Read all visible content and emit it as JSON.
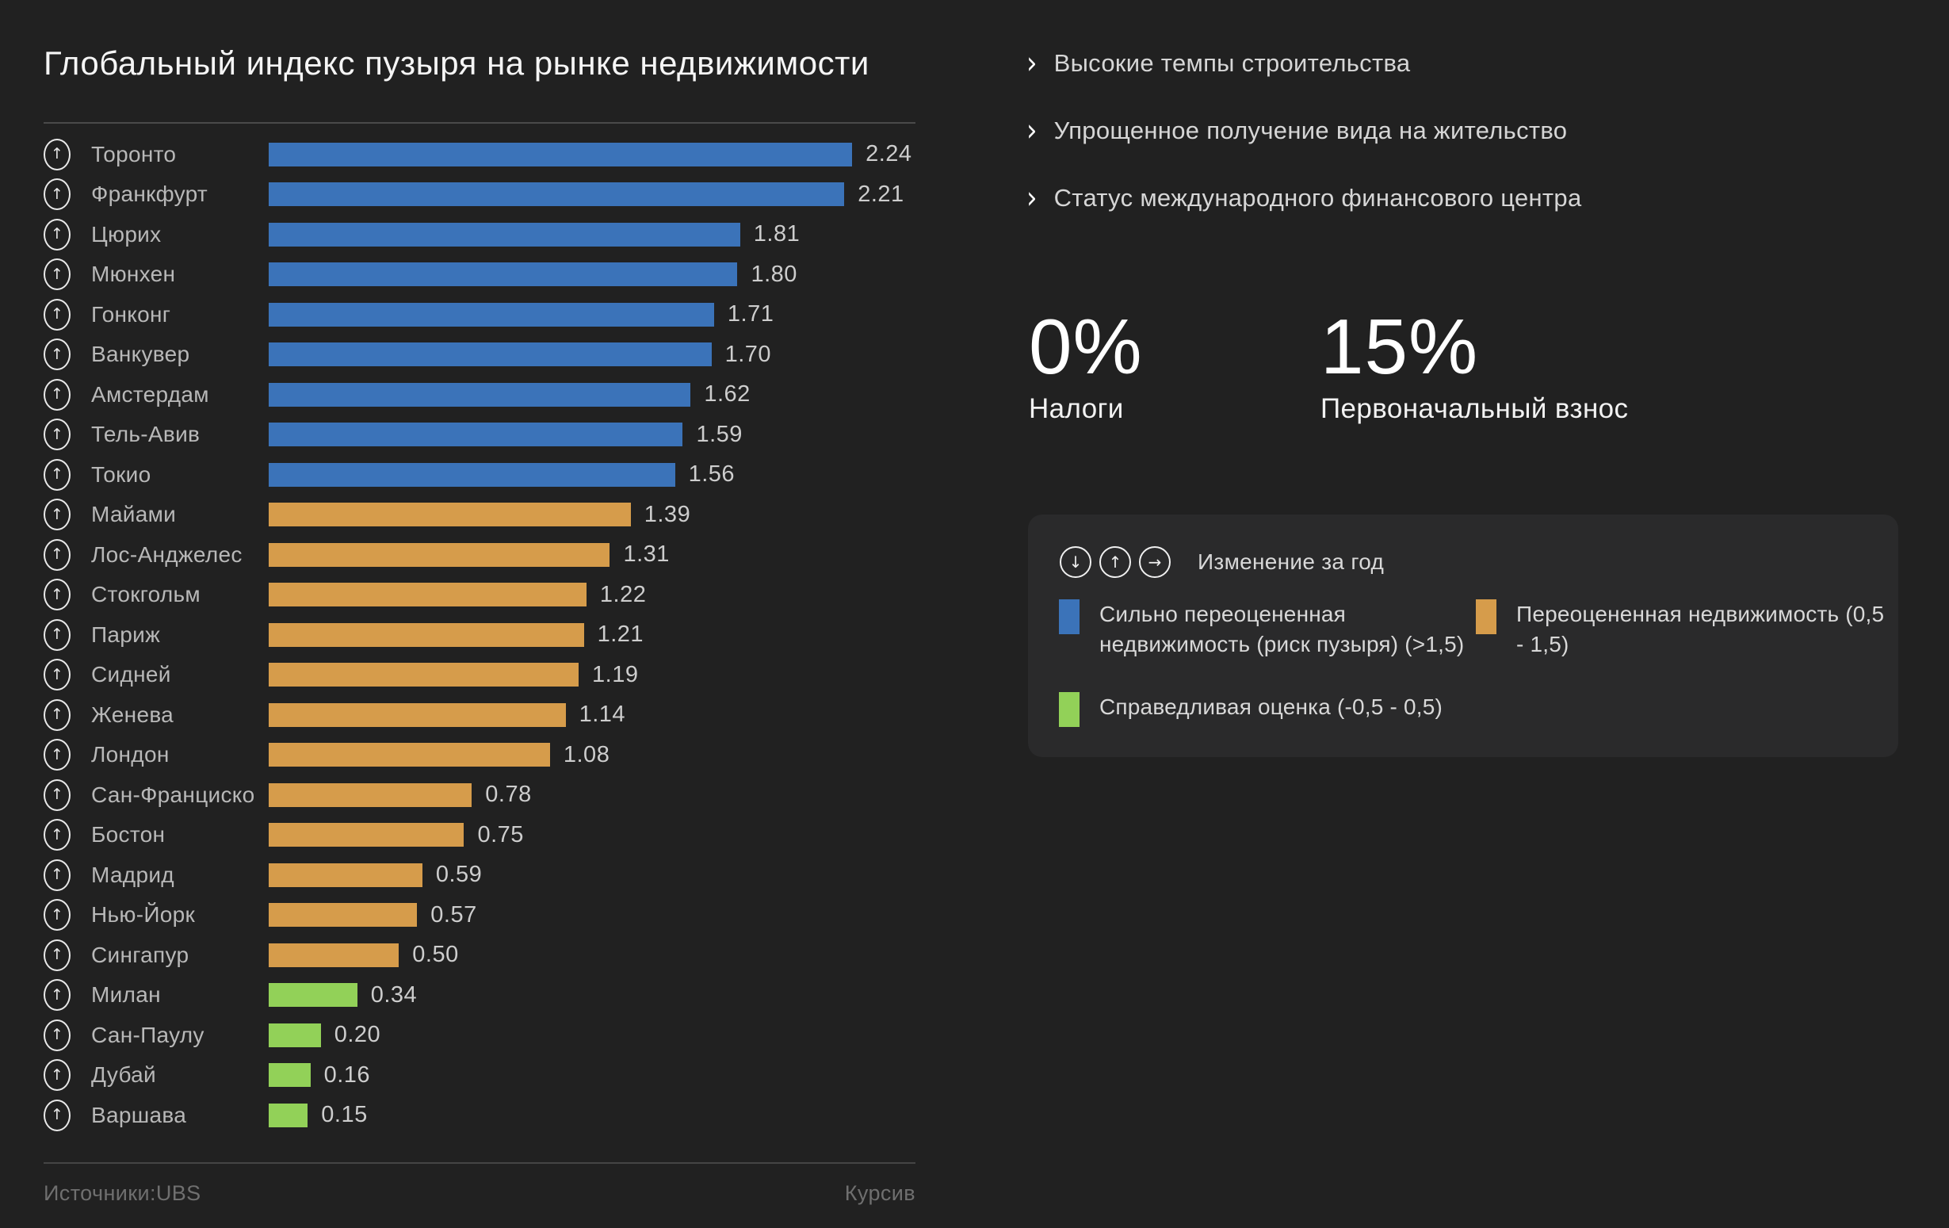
{
  "title": "Глобальный индекс пузыря на рынке недвижимости",
  "chart_data": {
    "type": "bar",
    "orientation": "horizontal",
    "title": "Глобальный индекс пузыря на рынке недвижимости",
    "categories": [
      "Торонто",
      "Франкфурт",
      "Цюрих",
      "Мюнхен",
      "Гонконг",
      "Ванкувер",
      "Амстердам",
      "Тель-Авив",
      "Токио",
      "Майами",
      "Лос-Анджелес",
      "Стокгольм",
      "Париж",
      "Сидней",
      "Женева",
      "Лондон",
      "Сан-Франциско",
      "Бостон",
      "Мадрид",
      "Нью-Йорк",
      "Сингапур",
      "Милан",
      "Сан-Паулу",
      "Дубай",
      "Варшава"
    ],
    "values": [
      2.24,
      2.21,
      1.81,
      1.8,
      1.71,
      1.7,
      1.62,
      1.59,
      1.56,
      1.39,
      1.31,
      1.22,
      1.21,
      1.19,
      1.14,
      1.08,
      0.78,
      0.75,
      0.59,
      0.57,
      0.5,
      0.34,
      0.2,
      0.16,
      0.15
    ],
    "changes": [
      "up",
      "up",
      "up",
      "up",
      "up",
      "up",
      "up",
      "up",
      "up",
      "up",
      "up",
      "up",
      "up",
      "up",
      "up",
      "up",
      "up",
      "up",
      "up",
      "up",
      "up",
      "up",
      "up",
      "up",
      "up"
    ],
    "xlim": [
      0,
      2.4
    ],
    "grid": false,
    "value_labels": "end-of-bar",
    "color_rules": {
      "bubble_risk_threshold": 1.5,
      "overvalued_threshold": 0.5
    }
  },
  "colors": {
    "background": "#212121",
    "panel": "#2a2a2b",
    "bubble_risk": "#3b73b9",
    "overvalued": "#d69c4b",
    "fair_value": "#92d158"
  },
  "footer": {
    "source": "Источники:UBS",
    "credit": "Курсив"
  },
  "highlights": {
    "items": [
      {
        "icon": "chevron-right-icon",
        "label": "Высокие темпы строительства"
      },
      {
        "icon": "chevron-right-icon",
        "label": "Упрощенное получение вида на жительство"
      },
      {
        "icon": "chevron-right-icon",
        "label": "Статус международного финансового центра"
      }
    ]
  },
  "stats": [
    {
      "value": "0%",
      "label": "Налоги"
    },
    {
      "value": "15%",
      "label": "Первоначальный взнос"
    }
  ],
  "legend": {
    "change_icons": [
      "arrow-down",
      "arrow-up",
      "arrow-right"
    ],
    "change_label": "Изменение за год",
    "items": [
      {
        "color": "#3b73b9",
        "label": "Сильно переоцененная недвижимость (риск пузыря) (>1,5)"
      },
      {
        "color": "#d69c4b",
        "label": "Переоцененная недвижимость (0,5 - 1,5)"
      },
      {
        "color": "#92d158",
        "label": "Справедливая оценка (-0,5 - 0,5)"
      }
    ]
  }
}
